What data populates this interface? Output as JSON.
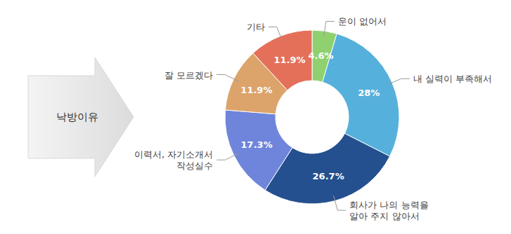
{
  "chart_data": {
    "type": "pie",
    "title": "낙방이유",
    "categories": [
      "운이 없어서",
      "내 실력이 부족해서",
      "회사가 나의 능력을 알아 주지 않아서",
      "이력서, 자기소개서 작성실수",
      "잘 모르겠다",
      "기타"
    ],
    "values": [
      4.6,
      28,
      26.7,
      17.3,
      11.9,
      11.9
    ],
    "value_labels": [
      "4.6%",
      "28%",
      "26.7%",
      "17.3%",
      "11.9%",
      "11.9%"
    ],
    "data_labels": true,
    "colors": [
      "#8fd16f",
      "#56b0dc",
      "#24508f",
      "#6f85dc",
      "#dca46a",
      "#e4705a"
    ]
  }
}
